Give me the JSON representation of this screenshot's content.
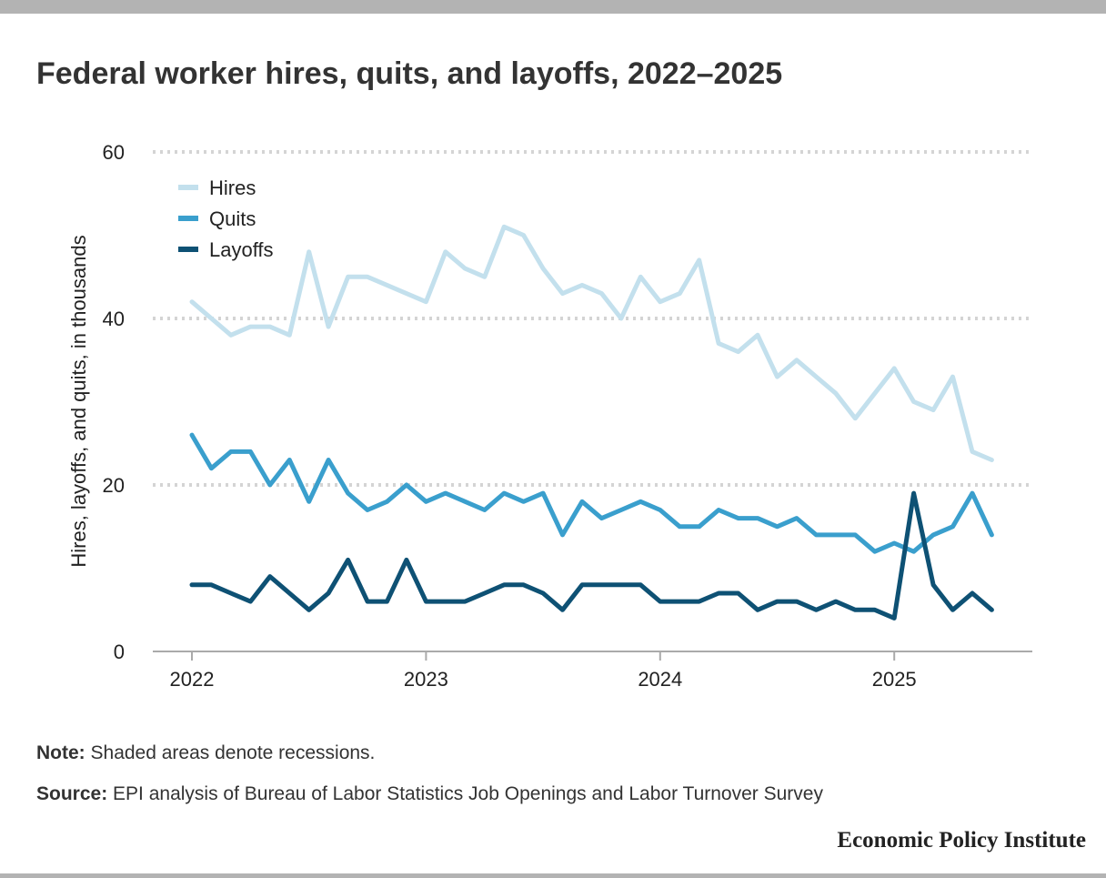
{
  "title": "Federal worker hires, quits, and layoffs, 2022–2025",
  "note": {
    "label": "Note:",
    "text": " Shaded areas denote recessions."
  },
  "source": {
    "label": "Source:",
    "text": " EPI analysis of Bureau of Labor Statistics Job Openings and Labor Turnover Survey"
  },
  "brand": "Economic Policy Institute",
  "chart_data": {
    "type": "line",
    "title": "Federal worker hires, quits, and layoffs, 2022–2025",
    "xlabel": "",
    "ylabel": "Hires, layoffs, and quits, in thousands",
    "ylim": [
      0,
      60
    ],
    "yticks": [
      "0",
      "20",
      "40",
      "60"
    ],
    "xticks": [
      "2022",
      "2023",
      "2024",
      "2025"
    ],
    "grid": "horizontal dotted",
    "legend_position": "top-left",
    "x": [
      "2022-01",
      "2022-02",
      "2022-03",
      "2022-04",
      "2022-05",
      "2022-06",
      "2022-07",
      "2022-08",
      "2022-09",
      "2022-10",
      "2022-11",
      "2022-12",
      "2023-01",
      "2023-02",
      "2023-03",
      "2023-04",
      "2023-05",
      "2023-06",
      "2023-07",
      "2023-08",
      "2023-09",
      "2023-10",
      "2023-11",
      "2023-12",
      "2024-01",
      "2024-02",
      "2024-03",
      "2024-04",
      "2024-05",
      "2024-06",
      "2024-07",
      "2024-08",
      "2024-09",
      "2024-10",
      "2024-11",
      "2024-12",
      "2025-01",
      "2025-02",
      "2025-03",
      "2025-04",
      "2025-05",
      "2025-06"
    ],
    "series": [
      {
        "name": "Hires",
        "color": "#c3e0ed",
        "values": [
          42,
          40,
          38,
          39,
          39,
          38,
          48,
          39,
          45,
          45,
          44,
          43,
          42,
          48,
          46,
          45,
          51,
          50,
          46,
          43,
          44,
          43,
          40,
          45,
          42,
          43,
          47,
          37,
          36,
          38,
          33,
          35,
          33,
          31,
          28,
          31,
          34,
          30,
          29,
          33,
          24,
          23
        ]
      },
      {
        "name": "Quits",
        "color": "#3a9fcd",
        "values": [
          26,
          22,
          24,
          24,
          20,
          23,
          18,
          23,
          19,
          17,
          18,
          20,
          18,
          19,
          18,
          17,
          19,
          18,
          19,
          14,
          18,
          16,
          17,
          18,
          17,
          15,
          15,
          17,
          16,
          16,
          15,
          16,
          14,
          14,
          14,
          12,
          13,
          12,
          14,
          15,
          19,
          14
        ]
      },
      {
        "name": "Layoffs",
        "color": "#0e5174",
        "values": [
          8,
          8,
          7,
          6,
          9,
          7,
          5,
          7,
          11,
          6,
          6,
          11,
          6,
          6,
          6,
          7,
          8,
          8,
          7,
          5,
          8,
          8,
          8,
          8,
          6,
          6,
          6,
          7,
          7,
          5,
          6,
          6,
          5,
          6,
          5,
          5,
          4,
          19,
          8,
          5,
          7,
          5
        ]
      }
    ]
  }
}
